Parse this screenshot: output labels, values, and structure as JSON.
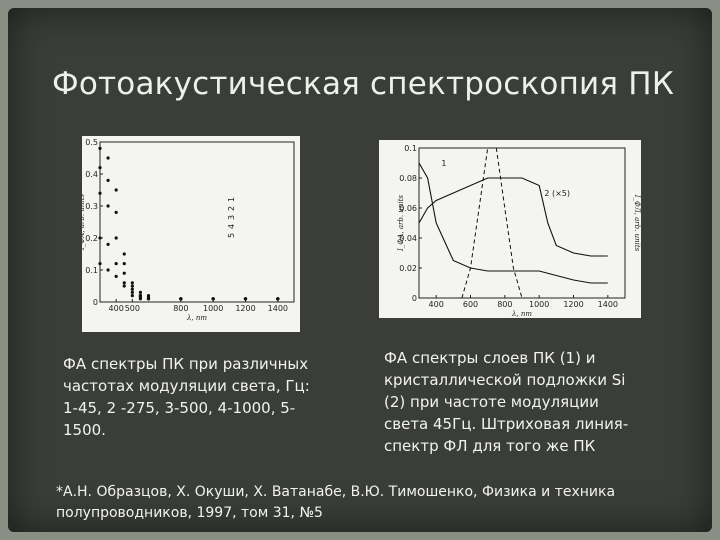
{
  "slide": {
    "title": "Фотоакустическая спектроскопия ПК",
    "caption_left": "ФА спектры ПК при различных частотах модуляции света, Гц: 1-45, 2 -275, 3-500, 4-1000, 5-1500.",
    "caption_right": "ФА спектры слоев ПК (1) и кристаллической подложки Si (2) при частоте модуляции света 45Гц. Штриховая линия-спектр ФЛ для того же ПК",
    "reference": "*А.Н. Образцов, Х. Окуши, Х. Ватанабе, В.Ю. Тимошенко, Физика и техника полупроводников, 1997, том 31, №5"
  },
  "chart_data": [
    {
      "type": "scatter",
      "xlabel": "λ, nm",
      "ylabel": "I_ФА, arb. units",
      "x_ticks": [
        "400",
        "500",
        "800",
        "1000",
        "1200",
        "1400"
      ],
      "y_ticks": [
        "0.5",
        "0.4",
        "0.3",
        "0.2",
        "0.1",
        "0"
      ],
      "ylim": [
        0,
        0.5
      ],
      "legend": [
        "1",
        "2",
        "3",
        "4",
        "5"
      ],
      "series": [
        {
          "name": "1",
          "x": [
            300,
            350,
            400,
            450,
            500,
            550,
            600,
            800,
            1000,
            1200,
            1400
          ],
          "y": [
            0.48,
            0.45,
            0.35,
            0.15,
            0.06,
            0.03,
            0.02,
            0.01,
            0.01,
            0.01,
            0.01
          ]
        },
        {
          "name": "2",
          "x": [
            300,
            350,
            400,
            450,
            500,
            550,
            600,
            800,
            1000,
            1200,
            1400
          ],
          "y": [
            0.42,
            0.38,
            0.28,
            0.12,
            0.05,
            0.02,
            0.015,
            0.01,
            0.01,
            0.01,
            0.01
          ]
        },
        {
          "name": "3",
          "x": [
            300,
            350,
            400,
            450,
            500,
            550,
            600,
            800,
            1000,
            1200,
            1400
          ],
          "y": [
            0.34,
            0.3,
            0.2,
            0.09,
            0.04,
            0.02,
            0.01,
            0.01,
            0.01,
            0.01,
            0.01
          ]
        },
        {
          "name": "4",
          "x": [
            300,
            350,
            400,
            450,
            500,
            550,
            600,
            800,
            1000,
            1200,
            1400
          ],
          "y": [
            0.2,
            0.18,
            0.12,
            0.06,
            0.03,
            0.015,
            0.01,
            0.01,
            0.01,
            0.01,
            0.01
          ]
        },
        {
          "name": "5",
          "x": [
            300,
            350,
            400,
            450,
            500,
            550,
            600,
            800,
            1000,
            1200,
            1400
          ],
          "y": [
            0.12,
            0.1,
            0.08,
            0.05,
            0.02,
            0.01,
            0.01,
            0.01,
            0.01,
            0.01,
            0.01
          ]
        }
      ]
    },
    {
      "type": "line",
      "xlabel": "λ, nm",
      "ylabel": "I_ФА, arb. units",
      "y2label": "I_ФЛ, arb. units",
      "x_ticks": [
        "400",
        "600",
        "800",
        "1000",
        "1200",
        "1400"
      ],
      "y_ticks": [
        "0.1",
        "0.08",
        "0.06",
        "0.04",
        "0.02",
        "0"
      ],
      "ylim": [
        0,
        0.1
      ],
      "series_labels": [
        "1",
        "2 (×5)"
      ],
      "series": [
        {
          "name": "1",
          "x": [
            300,
            350,
            400,
            500,
            600,
            700,
            800,
            900,
            1000,
            1100,
            1200,
            1300,
            1400
          ],
          "y": [
            0.09,
            0.08,
            0.05,
            0.025,
            0.02,
            0.018,
            0.018,
            0.018,
            0.018,
            0.015,
            0.012,
            0.01,
            0.01
          ]
        },
        {
          "name": "2",
          "x": [
            300,
            350,
            400,
            500,
            600,
            700,
            800,
            900,
            1000,
            1050,
            1100,
            1200,
            1300,
            1400
          ],
          "y": [
            0.05,
            0.06,
            0.065,
            0.07,
            0.075,
            0.08,
            0.08,
            0.08,
            0.075,
            0.05,
            0.035,
            0.03,
            0.028,
            0.028
          ]
        },
        {
          "name": "PL",
          "x": [
            550,
            600,
            650,
            700,
            750,
            800,
            850,
            900
          ],
          "y": [
            0.0,
            0.02,
            0.06,
            0.1,
            0.1,
            0.06,
            0.02,
            0.0
          ]
        }
      ]
    }
  ]
}
